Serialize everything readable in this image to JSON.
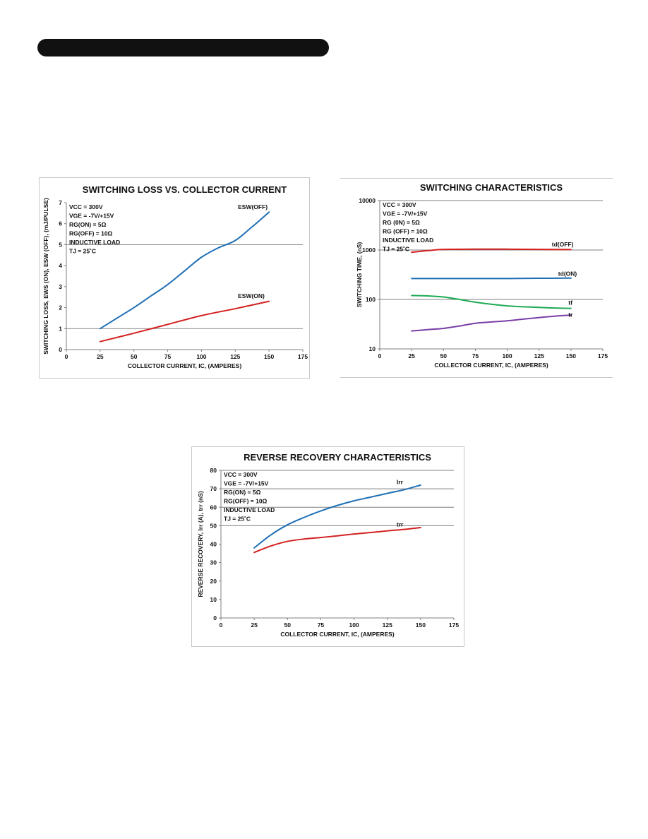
{
  "colors": {
    "blue": "#1f6fb5",
    "red": "#d42020",
    "green": "#1faa55",
    "purple": "#7a3ea8",
    "gridline": "#7f7f7f",
    "axis": "#7f7f7f",
    "header_bar": "#111111"
  },
  "chart_data": [
    {
      "type": "line",
      "title": "SWITCHING LOSS VS. COLLECTOR CURRENT",
      "xlabel": "COLLECTOR CURRENT, IC, (AMPERES)",
      "ylabel": "SWITCHING LOSS, EWS (ON), ESW (OFF), (mJ/PULSE)",
      "xlim": [
        0,
        175
      ],
      "ylim": [
        0,
        7
      ],
      "xticks": [
        0,
        25,
        50,
        75,
        100,
        125,
        150,
        175
      ],
      "yticks": [
        0,
        1,
        2,
        3,
        4,
        5,
        6,
        7
      ],
      "yscale": "linear",
      "gridlines_y": [
        1,
        5
      ],
      "conditions": [
        "VCC = 300V",
        "VGE = -7V/+15V",
        "RG(ON) = 5Ω",
        "RG(OFF) = 10Ω",
        "INDUCTIVE LOAD",
        "TJ = 25˚C"
      ],
      "series": [
        {
          "name": "ESW(OFF)",
          "color": "#1f6fb5",
          "label_anchor": [
            127,
            6.7
          ],
          "x": [
            25,
            37.5,
            50,
            62.5,
            75,
            87.5,
            100,
            112.5,
            125,
            137.5,
            150
          ],
          "y": [
            1.0,
            1.5,
            2.0,
            2.55,
            3.1,
            3.75,
            4.4,
            4.85,
            5.2,
            5.85,
            6.55
          ]
        },
        {
          "name": "ESW(ON)",
          "color": "#d42020",
          "label_anchor": [
            127,
            2.45
          ],
          "x": [
            25,
            50,
            75,
            100,
            125,
            150
          ],
          "y": [
            0.38,
            0.78,
            1.2,
            1.62,
            1.95,
            2.3
          ]
        }
      ]
    },
    {
      "type": "line",
      "title": "SWITCHING CHARACTERISTICS",
      "xlabel": "COLLECTOR CURRENT, IC, (AMPERES)",
      "ylabel": "SWITCHING TIME, (nS)",
      "xlim": [
        0,
        175
      ],
      "ylim": [
        10,
        10000
      ],
      "xticks": [
        0,
        25,
        50,
        75,
        100,
        125,
        150,
        175
      ],
      "yticks": [
        10,
        100,
        1000,
        10000
      ],
      "yscale": "log",
      "gridlines_y": [
        100,
        1000,
        10000
      ],
      "conditions": [
        "VCC = 300V",
        "VGE = -7V/+15V",
        "RG (0N) = 5Ω",
        "RG (OFF) = 10Ω",
        "INDUCTIVE LOAD",
        "TJ = 25˚C"
      ],
      "series": [
        {
          "name": "td(OFF)",
          "color": "#d42020",
          "label_anchor": [
            135,
            1180
          ],
          "x": [
            25,
            37.5,
            50,
            75,
            100,
            125,
            150
          ],
          "y": [
            900,
            970,
            1030,
            1040,
            1040,
            1030,
            1020
          ]
        },
        {
          "name": "td(ON)",
          "color": "#1f6fb5",
          "label_anchor": [
            140,
            300
          ],
          "x": [
            25,
            50,
            75,
            100,
            125,
            150
          ],
          "y": [
            265,
            265,
            265,
            265,
            268,
            270
          ]
        },
        {
          "name": "tf",
          "color": "#1faa55",
          "label_anchor": [
            148,
            78
          ],
          "x": [
            25,
            37.5,
            50,
            62.5,
            75,
            87.5,
            100,
            112.5,
            125,
            137.5,
            150
          ],
          "y": [
            120,
            118,
            112,
            100,
            88,
            80,
            74,
            71,
            69,
            67,
            66
          ]
        },
        {
          "name": "tr",
          "color": "#7a3ea8",
          "label_anchor": [
            148,
            45
          ],
          "x": [
            25,
            37.5,
            50,
            62.5,
            75,
            87.5,
            100,
            112.5,
            125,
            137.5,
            150
          ],
          "y": [
            23,
            24.5,
            26,
            29,
            33,
            35,
            37,
            40,
            43,
            46,
            48
          ]
        }
      ]
    },
    {
      "type": "line",
      "title": "REVERSE RECOVERY CHARACTERISTICS",
      "xlabel": "COLLECTOR CURRENT, IC, (AMPERES)",
      "ylabel": "REVERSE RECOVERY, Irr (A), trr (nS)",
      "xlim": [
        0,
        175
      ],
      "ylim": [
        0,
        80
      ],
      "xticks": [
        0,
        25,
        50,
        75,
        100,
        125,
        150,
        175
      ],
      "yticks": [
        0,
        10,
        20,
        30,
        40,
        50,
        60,
        70,
        80
      ],
      "yscale": "linear",
      "gridlines_y": [
        50,
        60,
        70,
        80
      ],
      "conditions": [
        "VCC = 300V",
        "VGE = -7V/+15V",
        "RG(ON) = 5Ω",
        "RG(OFF) = 10Ω",
        "INDUCTIVE LOAD",
        "TJ = 25˚C"
      ],
      "series": [
        {
          "name": "Irr",
          "color": "#1f6fb5",
          "label_anchor": [
            132,
            72.5
          ],
          "x": [
            25,
            37.5,
            50,
            62.5,
            75,
            87.5,
            100,
            112.5,
            125,
            137.5,
            150
          ],
          "y": [
            38,
            45,
            50.5,
            54.5,
            58,
            61,
            63.5,
            65.5,
            67.5,
            69.5,
            72
          ]
        },
        {
          "name": "trr",
          "color": "#d42020",
          "label_anchor": [
            132,
            49.5
          ],
          "x": [
            25,
            37.5,
            50,
            62.5,
            75,
            87.5,
            100,
            112.5,
            125,
            137.5,
            150
          ],
          "y": [
            35.5,
            39,
            41.5,
            42.8,
            43.6,
            44.5,
            45.5,
            46.3,
            47.2,
            48,
            49
          ]
        }
      ]
    }
  ]
}
